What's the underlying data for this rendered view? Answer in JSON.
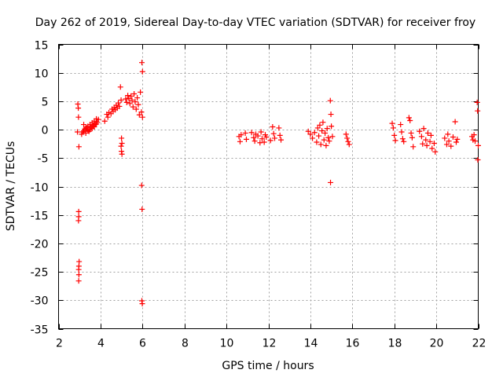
{
  "chart_data": {
    "type": "scatter",
    "title": "Day 262 of 2019, Sidereal Day-to-day VTEC variation (SDTVAR) for receiver froy",
    "xlabel": "GPS time / hours",
    "ylabel": "SDTVAR / TECUs",
    "xlim": [
      2,
      22
    ],
    "ylim": [
      -35,
      15
    ],
    "xticks": [
      2,
      4,
      6,
      8,
      10,
      12,
      14,
      16,
      18,
      20,
      22
    ],
    "yticks": [
      -35,
      -30,
      -25,
      -20,
      -15,
      -10,
      -5,
      0,
      5,
      10,
      15
    ],
    "grid": true,
    "marker": "plus",
    "color": "#ff0000",
    "series": [
      {
        "name": "SDTVAR",
        "points": [
          [
            2.9,
            -0.4
          ],
          [
            2.92,
            4.5
          ],
          [
            2.94,
            3.8
          ],
          [
            2.95,
            2.2
          ],
          [
            2.97,
            -3.0
          ],
          [
            2.96,
            -14.4
          ],
          [
            2.96,
            -15.3
          ],
          [
            2.95,
            -16.0
          ],
          [
            2.98,
            -23.2
          ],
          [
            2.97,
            -24.0
          ],
          [
            2.96,
            -24.6
          ],
          [
            2.97,
            -25.5
          ],
          [
            2.96,
            -26.6
          ],
          [
            3.1,
            -0.8
          ],
          [
            3.15,
            -0.4
          ],
          [
            3.2,
            -0.2
          ],
          [
            3.25,
            0.1
          ],
          [
            3.3,
            -0.6
          ],
          [
            3.35,
            0.3
          ],
          [
            3.4,
            0.6
          ],
          [
            3.45,
            -0.3
          ],
          [
            3.5,
            0.9
          ],
          [
            3.55,
            0.4
          ],
          [
            3.6,
            1.2
          ],
          [
            3.65,
            0.7
          ],
          [
            3.7,
            1.5
          ],
          [
            3.75,
            0.9
          ],
          [
            3.8,
            1.9
          ],
          [
            3.85,
            1.3
          ],
          [
            3.9,
            1.8
          ],
          [
            3.2,
            0.9
          ],
          [
            3.3,
            0.3
          ],
          [
            3.4,
            -0.2
          ],
          [
            3.5,
            0.0
          ],
          [
            3.6,
            0.2
          ],
          [
            3.7,
            0.5
          ],
          [
            3.8,
            1.0
          ],
          [
            4.2,
            1.5
          ],
          [
            4.3,
            2.7
          ],
          [
            4.35,
            2.2
          ],
          [
            4.4,
            3.0
          ],
          [
            4.5,
            2.8
          ],
          [
            4.55,
            3.6
          ],
          [
            4.6,
            3.2
          ],
          [
            4.65,
            3.9
          ],
          [
            4.7,
            3.5
          ],
          [
            4.75,
            4.3
          ],
          [
            4.8,
            3.8
          ],
          [
            4.85,
            4.7
          ],
          [
            4.9,
            4.1
          ],
          [
            4.95,
            7.5
          ],
          [
            4.98,
            5.2
          ],
          [
            5.0,
            -1.5
          ],
          [
            5.02,
            -2.4
          ],
          [
            4.98,
            -2.9
          ],
          [
            5.0,
            -3.8
          ],
          [
            5.02,
            -4.3
          ],
          [
            5.2,
            5.4
          ],
          [
            5.25,
            4.8
          ],
          [
            5.3,
            6.0
          ],
          [
            5.35,
            5.5
          ],
          [
            5.4,
            4.6
          ],
          [
            5.45,
            5.9
          ],
          [
            5.5,
            5.2
          ],
          [
            5.55,
            4.0
          ],
          [
            5.6,
            6.3
          ],
          [
            5.65,
            4.9
          ],
          [
            5.7,
            3.6
          ],
          [
            5.75,
            5.6
          ],
          [
            5.8,
            4.4
          ],
          [
            5.85,
            2.6
          ],
          [
            5.9,
            6.6
          ],
          [
            5.95,
            3.1
          ],
          [
            6.0,
            2.2
          ],
          [
            5.97,
            11.8
          ],
          [
            6.0,
            10.2
          ],
          [
            5.96,
            -9.8
          ],
          [
            5.98,
            -14.0
          ],
          [
            5.97,
            -30.1
          ],
          [
            5.99,
            -30.6
          ],
          [
            10.6,
            -1.2
          ],
          [
            10.65,
            -2.1
          ],
          [
            10.7,
            -0.9
          ],
          [
            10.9,
            -0.6
          ],
          [
            10.95,
            -1.7
          ],
          [
            11.2,
            -0.5
          ],
          [
            11.3,
            -1.4
          ],
          [
            11.35,
            -2.0
          ],
          [
            11.4,
            -0.8
          ],
          [
            11.5,
            -1.1
          ],
          [
            11.6,
            -2.3
          ],
          [
            11.65,
            -0.4
          ],
          [
            11.7,
            -1.6
          ],
          [
            11.8,
            -2.2
          ],
          [
            11.85,
            -0.9
          ],
          [
            11.9,
            -1.3
          ],
          [
            12.1,
            -1.9
          ],
          [
            12.2,
            0.5
          ],
          [
            12.25,
            -0.7
          ],
          [
            12.3,
            -1.5
          ],
          [
            12.5,
            0.3
          ],
          [
            12.55,
            -1.0
          ],
          [
            12.6,
            -1.8
          ],
          [
            13.9,
            -0.3
          ],
          [
            14.0,
            -0.8
          ],
          [
            14.1,
            -1.5
          ],
          [
            14.2,
            -0.5
          ],
          [
            14.3,
            -2.2
          ],
          [
            14.35,
            0.3
          ],
          [
            14.4,
            -1.1
          ],
          [
            14.45,
            0.8
          ],
          [
            14.5,
            -2.6
          ],
          [
            14.55,
            -0.2
          ],
          [
            14.6,
            1.3
          ],
          [
            14.65,
            -1.8
          ],
          [
            14.7,
            -0.6
          ],
          [
            14.75,
            -2.8
          ],
          [
            14.8,
            0.2
          ],
          [
            14.85,
            -1.4
          ],
          [
            14.9,
            -2.0
          ],
          [
            14.95,
            5.1
          ],
          [
            14.98,
            2.7
          ],
          [
            14.96,
            -9.3
          ],
          [
            15.0,
            0.6
          ],
          [
            15.05,
            -1.2
          ],
          [
            15.7,
            -0.8
          ],
          [
            15.75,
            -1.5
          ],
          [
            15.8,
            -2.1
          ],
          [
            15.85,
            -2.6
          ],
          [
            17.9,
            1.1
          ],
          [
            17.95,
            0.3
          ],
          [
            18.0,
            -1.0
          ],
          [
            18.05,
            -1.9
          ],
          [
            18.3,
            0.9
          ],
          [
            18.35,
            -0.4
          ],
          [
            18.4,
            -1.6
          ],
          [
            18.45,
            -2.1
          ],
          [
            18.7,
            2.1
          ],
          [
            18.75,
            1.6
          ],
          [
            18.8,
            -0.6
          ],
          [
            18.85,
            -1.4
          ],
          [
            18.9,
            -3.0
          ],
          [
            19.2,
            -0.3
          ],
          [
            19.3,
            -1.2
          ],
          [
            19.35,
            -2.5
          ],
          [
            19.4,
            0.2
          ],
          [
            19.5,
            -1.8
          ],
          [
            19.55,
            -2.8
          ],
          [
            19.6,
            -0.6
          ],
          [
            19.7,
            -2.1
          ],
          [
            19.75,
            -1.0
          ],
          [
            19.8,
            -3.3
          ],
          [
            19.9,
            -2.4
          ],
          [
            19.95,
            -3.9
          ],
          [
            20.4,
            -1.5
          ],
          [
            20.5,
            -2.6
          ],
          [
            20.55,
            -0.8
          ],
          [
            20.6,
            -2.0
          ],
          [
            20.7,
            -2.9
          ],
          [
            20.8,
            -1.3
          ],
          [
            20.9,
            1.4
          ],
          [
            20.95,
            -2.2
          ],
          [
            21.0,
            -1.7
          ],
          [
            21.7,
            -1.2
          ],
          [
            21.75,
            -1.8
          ],
          [
            21.8,
            -0.9
          ],
          [
            21.85,
            -2.0
          ],
          [
            21.95,
            4.8
          ],
          [
            21.97,
            3.3
          ],
          [
            22.0,
            -2.8
          ],
          [
            21.98,
            -5.3
          ]
        ]
      }
    ]
  }
}
